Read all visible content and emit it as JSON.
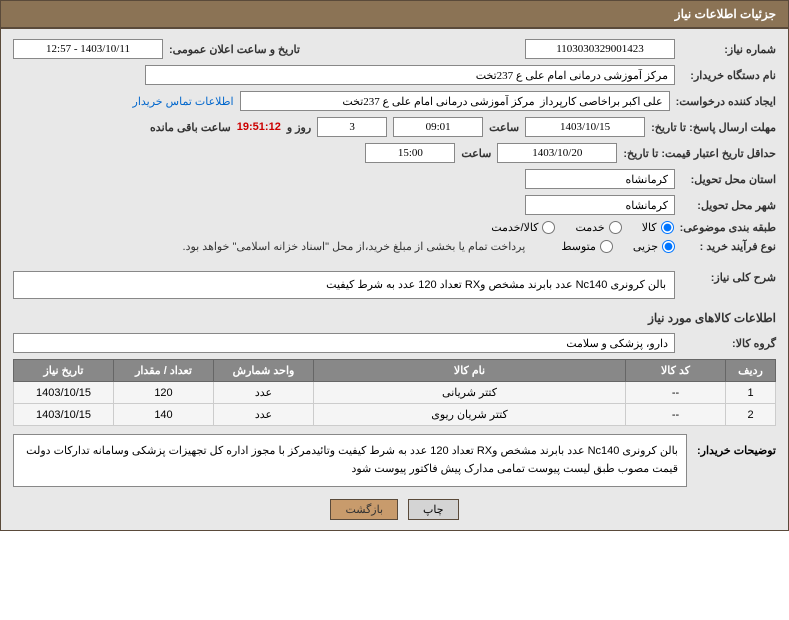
{
  "header": {
    "title": "جزئیات اطلاعات نیاز"
  },
  "fields": {
    "need_no_label": "شماره نیاز:",
    "need_no": "1103030329001423",
    "announce_date_label": "تاریخ و ساعت اعلان عمومی:",
    "announce_date": "1403/10/11 - 12:57",
    "buyer_org_label": "نام دستگاه خریدار:",
    "buyer_org": "مرکز آموزشی درمانی امام علی ع 237تخت",
    "requester_label": "ایجاد کننده درخواست:",
    "requester": "علی اکبر براخاصی کارپرداز  مرکز آموزشی درمانی امام علی ع 237تخت",
    "contact_link": "اطلاعات تماس خریدار",
    "deadline_label": "مهلت ارسال پاسخ: تا تاریخ:",
    "deadline_date": "1403/10/15",
    "time_label": "ساعت",
    "deadline_time": "09:01",
    "days_label": "روز و",
    "days": "3",
    "countdown": "19:51:12",
    "remaining_label": "ساعت باقی مانده",
    "validity_label": "حداقل تاریخ اعتبار قیمت: تا تاریخ:",
    "validity_date": "1403/10/20",
    "validity_time": "15:00",
    "province_label": "استان محل تحویل:",
    "province": "کرمانشاه",
    "city_label": "شهر محل تحویل:",
    "city": "کرمانشاه",
    "category_label": "طبقه بندی موضوعی:",
    "purchase_type_label": "نوع فرآیند خرید :",
    "purchase_note": "پرداخت تمام یا بخشی از مبلغ خرید،از محل \"اسناد خزانه اسلامی\" خواهد بود."
  },
  "radios": {
    "cat_goods": "کالا",
    "cat_service": "خدمت",
    "cat_both": "کالا/خدمت",
    "type_partial": "جزیی",
    "type_medium": "متوسط"
  },
  "summary": {
    "title": "شرح کلی نیاز:",
    "text": "بالن کرونری Nc140 عدد بابرند مشخص وRX تعداد 120 عدد به شرط کیفیت"
  },
  "items_section": {
    "title": "اطلاعات کالاهای مورد نیاز",
    "group_label": "گروه کالا:",
    "group": "دارو، پزشکی و سلامت"
  },
  "table": {
    "headers": {
      "row": "ردیف",
      "code": "کد کالا",
      "name": "نام کالا",
      "unit": "واحد شمارش",
      "qty": "تعداد / مقدار",
      "date": "تاریخ نیاز"
    },
    "rows": [
      {
        "n": "1",
        "code": "--",
        "name": "کتتر شریانی",
        "unit": "عدد",
        "qty": "120",
        "date": "1403/10/15"
      },
      {
        "n": "2",
        "code": "--",
        "name": "کتتر شریان ریوی",
        "unit": "عدد",
        "qty": "140",
        "date": "1403/10/15"
      }
    ]
  },
  "remarks": {
    "label": "توضیحات خریدار:",
    "text": "بالن کرونری Nc140 عدد بابرند مشخص وRX تعداد 120 عدد به شرط کیفیت وتائیدمرکز با مجوز اداره کل تجهیزات پزشکی وسامانه تدارکات دولت قیمت مصوب طبق لیست پیوست تمامی مدارک پیش فاکتور پیوست شود"
  },
  "buttons": {
    "print": "چاپ",
    "back": "بازگشت"
  }
}
